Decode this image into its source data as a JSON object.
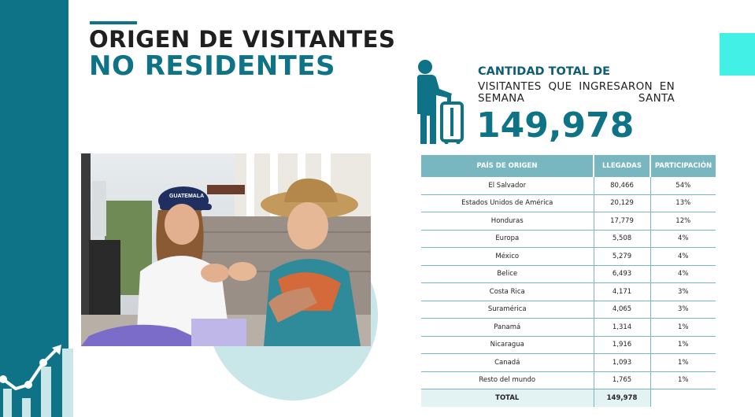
{
  "title": {
    "line1": "ORIGEN DE VISITANTES",
    "line2": "NO RESIDENTES"
  },
  "summary": {
    "heading": "CANTIDAD TOTAL DE",
    "subtitle": "VISITANTES QUE INGRESARON EN SEMANA SANTA",
    "total": "149,978"
  },
  "photo": {
    "cap_text": "GUATEMALA"
  },
  "table": {
    "headers": [
      "PAÍS DE ORIGEN",
      "LLEGADAS",
      "PARTICIPACIÓN"
    ],
    "rows": [
      [
        "El Salvador",
        "80,466",
        "54%"
      ],
      [
        "Estados Unidos de América",
        "20,129",
        "13%"
      ],
      [
        "Honduras",
        "17,779",
        "12%"
      ],
      [
        "Europa",
        "5,508",
        "4%"
      ],
      [
        "México",
        "5,279",
        "4%"
      ],
      [
        "Belice",
        "6,493",
        "4%"
      ],
      [
        "Costa Rica",
        "4,171",
        "3%"
      ],
      [
        "Suramérica",
        "4,065",
        "3%"
      ],
      [
        "Panamá",
        "1,314",
        "1%"
      ],
      [
        "Nicaragua",
        "1,916",
        "1%"
      ],
      [
        "Canadá",
        "1,093",
        "1%"
      ],
      [
        "Resto del mundo",
        "1,765",
        "1%"
      ]
    ],
    "total_row": [
      "TOTAL",
      "149,978",
      ""
    ]
  },
  "colors": {
    "teal_dark": "#0e7386",
    "teal_header": "#78b7c0",
    "teal_light": "#c9e7e8",
    "aqua_accent": "#43f0e6"
  },
  "icons": [
    "traveler-with-suitcase-icon",
    "growth-chart-icon"
  ]
}
